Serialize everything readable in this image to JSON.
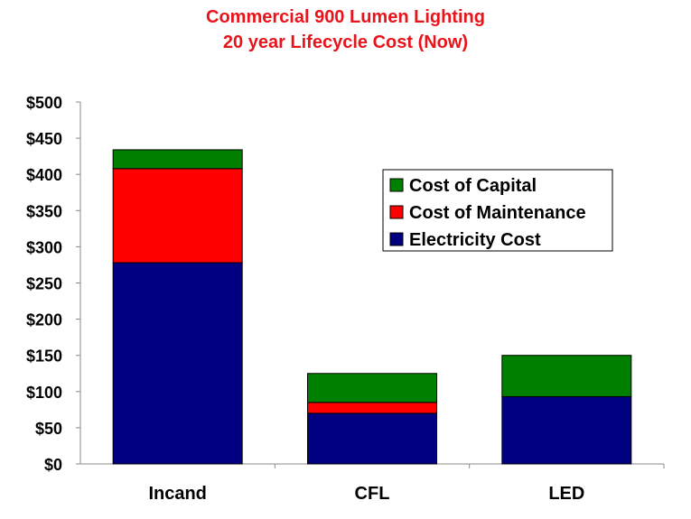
{
  "chart_data": {
    "type": "bar",
    "stacked": true,
    "title": "Commercial 900 Lumen Lighting",
    "subtitle": "20 year Lifecycle Cost (Now)",
    "xlabel": "",
    "ylabel": "",
    "categories": [
      "Incand",
      "CFL",
      "LED"
    ],
    "series": [
      {
        "name": "Electricity Cost",
        "color": "#000080",
        "values": [
          278,
          70,
          93
        ]
      },
      {
        "name": "Cost of Maintenance",
        "color": "#ff0000",
        "values": [
          130,
          15,
          0
        ]
      },
      {
        "name": "Cost of Capital",
        "color": "#008000",
        "values": [
          26,
          40,
          57
        ]
      }
    ],
    "ylim": [
      0,
      500
    ],
    "yticks": [
      0,
      50,
      100,
      150,
      200,
      250,
      300,
      350,
      400,
      450,
      500
    ],
    "ytick_labels": [
      "$0",
      "$50",
      "$100",
      "$150",
      "$200",
      "$250",
      "$300",
      "$350",
      "$400",
      "$450",
      "$500"
    ],
    "legend_order": [
      "Cost of Capital",
      "Cost of Maintenance",
      "Electricity Cost"
    ],
    "legend_position": "right",
    "grid": false
  }
}
